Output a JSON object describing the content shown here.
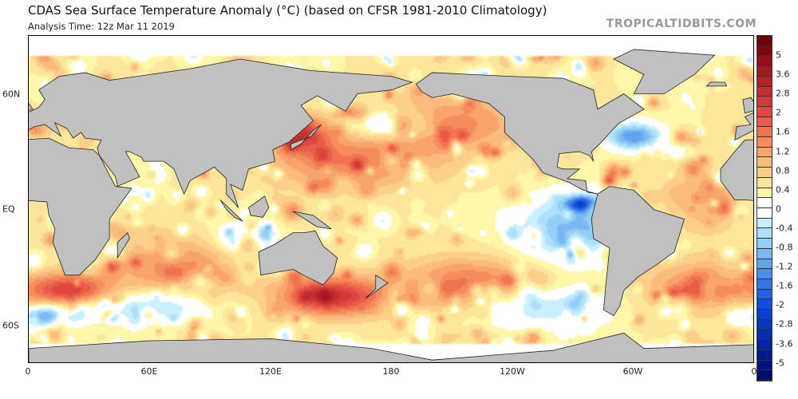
{
  "header": {
    "title": "CDAS Sea Surface Temperature Anomaly (°C) (based on CFSR 1981-2010 Climatology)",
    "subtitle": "Analysis Time: 12z Mar 11 2019",
    "brand": "TROPICALTIDBITS.COM"
  },
  "map": {
    "variable": "Sea Surface Temperature Anomaly",
    "units": "°C",
    "land_color": "#c0c0c0",
    "x_ticks": [
      "0",
      "60E",
      "120E",
      "180",
      "120W",
      "60W",
      "0"
    ],
    "y_ticks": [
      "60N",
      "EQ",
      "60S"
    ]
  },
  "colorbar": {
    "labels": [
      "5",
      "3.6",
      "2.8",
      "2",
      "1.6",
      "1.2",
      "0.8",
      "0.4",
      "0",
      "-0.4",
      "-0.8",
      "-1.2",
      "-1.6",
      "-2",
      "-2.8",
      "-3.6",
      "-5"
    ],
    "warm_colors": [
      "#fff7a8",
      "#fde59a",
      "#fcd08a",
      "#fbbb7a",
      "#f9a46a",
      "#f68c5c",
      "#f07452",
      "#e85c48",
      "#de4840",
      "#d23a38",
      "#c42e30",
      "#b42228",
      "#a41820",
      "#920e18",
      "#7e0610",
      "#6a0008"
    ],
    "cold_colors": [
      "#c8f0ff",
      "#aee0fb",
      "#94cdf6",
      "#7ab8f2",
      "#62a2ee",
      "#4a8cea",
      "#3476e6",
      "#2062e2",
      "#0e50dc",
      "#0642cc",
      "#0438bc",
      "#032eac",
      "#02249c",
      "#011a8c",
      "#01127c",
      "#000a6c"
    ],
    "zero_color": "#ffffff"
  }
}
